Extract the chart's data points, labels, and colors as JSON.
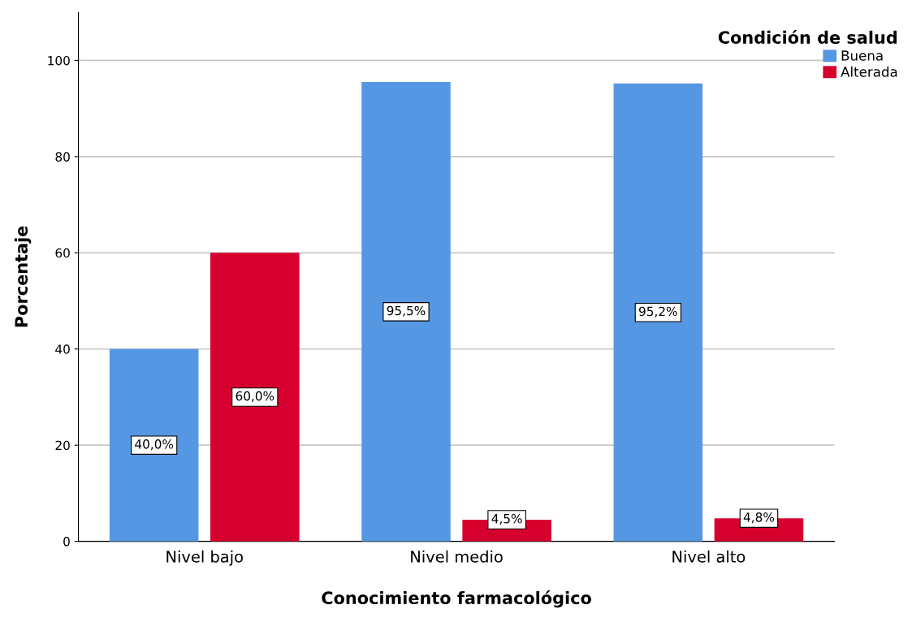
{
  "chart_data": {
    "type": "bar",
    "xlabel": "Conocimiento farmacológico",
    "ylabel": "Porcentaje",
    "legend_title": "Condición de salud",
    "categories": [
      "Nivel bajo",
      "Nivel medio",
      "Nivel alto"
    ],
    "series": [
      {
        "name": "Buena",
        "color": "#5597e3",
        "values": [
          40.0,
          95.5,
          95.2
        ],
        "value_labels": [
          "40,0%",
          "95,5%",
          "95,2%"
        ]
      },
      {
        "name": "Alterada",
        "color": "#d6002f",
        "values": [
          60.0,
          4.5,
          4.8
        ],
        "value_labels": [
          "60,0%",
          "4,5%",
          "4,8%"
        ]
      }
    ],
    "ylim": [
      0,
      110
    ],
    "yticks": [
      0,
      20,
      40,
      60,
      80,
      100
    ],
    "grid": "y",
    "legend": "top right"
  }
}
